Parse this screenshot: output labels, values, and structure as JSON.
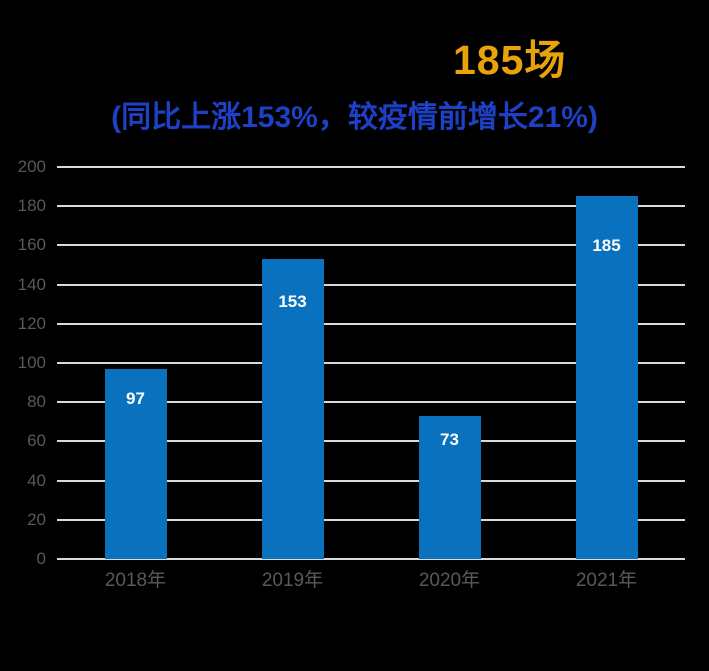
{
  "title": {
    "highlight": "185场",
    "color": "#E8A30A"
  },
  "subtitle": {
    "text": "(同比上涨153%，较疫情前增长21%)",
    "color": "#1D40C4"
  },
  "chart_data": {
    "type": "bar",
    "categories": [
      "2018年",
      "2019年",
      "2020年",
      "2021年"
    ],
    "values": [
      97,
      153,
      73,
      185
    ],
    "title": "185场",
    "subtitle": "(同比上涨153%，较疫情前增长21%)",
    "xlabel": "",
    "ylabel": "",
    "ylim": [
      0,
      200
    ],
    "ytick_step": 20,
    "grid": true,
    "legend": "none",
    "bar_color": "#0A71BE",
    "bar_label_color": "#FFFFFF",
    "gridline_color": "#D9D9D9",
    "axis_text_color": "#595959"
  }
}
